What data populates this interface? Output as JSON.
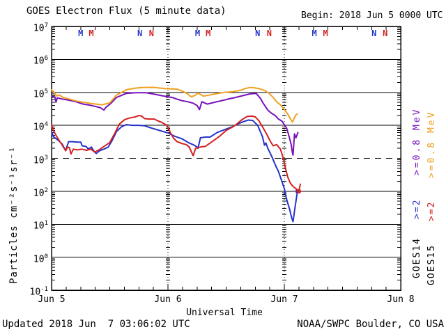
{
  "header": {
    "title": "GOES Electron Flux (5 minute data)",
    "begin": "Begin: 2018 Jun 5 0000 UTC"
  },
  "footer": {
    "updated": "Updated 2018 Jun  7 03:06:02 UTC",
    "source": "NOAA/SWPC Boulder, CO USA"
  },
  "colors": {
    "goes14_e2": "#2433cc",
    "goes14_e08": "#7711bb",
    "goes15_e2": "#d42020",
    "goes15_e08": "#f0a01e",
    "axis": "#000000"
  },
  "legend": {
    "columns": [
      {
        "satellite": "GOES14",
        "e2_label": ">=2",
        "e08_label": ">=0.8 MeV",
        "e2_color": "#2433cc",
        "e08_color": "#7711bb"
      },
      {
        "satellite": "GOES15",
        "e2_label": ">=2",
        "e08_label": ">=0.8 MeV",
        "e2_color": "#d42020",
        "e08_color": "#f0a01e"
      }
    ]
  },
  "chart_data": {
    "type": "line",
    "title": "GOES Electron Flux (5 minute data)",
    "xlabel": "Universal Time",
    "ylabel": "Particles cm-2 s-1 sr-1",
    "ylabel_display": "Particles cm⁻²s⁻¹sr⁻¹",
    "x_unit": "hours since 2018 Jun 5 0000 UTC",
    "xlim": [
      0,
      72
    ],
    "ylim_log10_exp": [
      -1,
      7
    ],
    "grid": "log decades, solid lines with dashed line at 1e3",
    "legend_position": "right, rotated",
    "x_ticks": [
      {
        "hour": 0,
        "label": "Jun 5"
      },
      {
        "hour": 24,
        "label": "Jun 6"
      },
      {
        "hour": 48,
        "label": "Jun 7"
      },
      {
        "hour": 72,
        "label": "Jun 8"
      }
    ],
    "minor_tick_hours": 3,
    "y_ticks_exp": [
      7,
      6,
      5,
      4,
      3,
      2,
      1,
      0,
      -1
    ],
    "hline_solid_exp": [
      6,
      5,
      4,
      2,
      1,
      0
    ],
    "hline_dashed_exp": [
      3
    ],
    "vline_dotted_hours": [
      24,
      48
    ],
    "top_markers": [
      {
        "hour": 6.0,
        "label": "M",
        "satellite": "GOES14",
        "color": "#2433cc"
      },
      {
        "hour": 8.2,
        "label": "M",
        "satellite": "GOES15",
        "color": "#d42020"
      },
      {
        "hour": 18.2,
        "label": "N",
        "satellite": "GOES14",
        "color": "#2433cc"
      },
      {
        "hour": 20.6,
        "label": "N",
        "satellite": "GOES15",
        "color": "#d42020"
      },
      {
        "hour": 30.1,
        "label": "M",
        "satellite": "GOES14",
        "color": "#2433cc"
      },
      {
        "hour": 32.3,
        "label": "M",
        "satellite": "GOES15",
        "color": "#d42020"
      },
      {
        "hour": 42.5,
        "label": "N",
        "satellite": "GOES14",
        "color": "#2433cc"
      },
      {
        "hour": 44.9,
        "label": "N",
        "satellite": "GOES15",
        "color": "#d42020"
      },
      {
        "hour": 54.2,
        "label": "M",
        "satellite": "GOES14",
        "color": "#2433cc"
      },
      {
        "hour": 56.5,
        "label": "M",
        "satellite": "GOES15",
        "color": "#d42020"
      },
      {
        "hour": 66.5,
        "label": "N",
        "satellite": "GOES14",
        "color": "#2433cc"
      },
      {
        "hour": 68.8,
        "label": "N",
        "satellite": "GOES15",
        "color": "#d42020"
      }
    ],
    "series": [
      {
        "name": "GOES14 >=0.8 MeV",
        "color": "#7711bb",
        "points": [
          [
            0,
            78000
          ],
          [
            0.7,
            72000
          ],
          [
            0.9,
            50000
          ],
          [
            1.2,
            68000
          ],
          [
            2.2,
            63000
          ],
          [
            3.6,
            58000
          ],
          [
            5,
            52000
          ],
          [
            6.5,
            44000
          ],
          [
            7.9,
            41000
          ],
          [
            8.9,
            38000
          ],
          [
            10.1,
            34000
          ],
          [
            10.8,
            29000
          ],
          [
            11.2,
            35000
          ],
          [
            12.2,
            46000
          ],
          [
            13.4,
            70000
          ],
          [
            15.4,
            93000
          ],
          [
            17.3,
            98000
          ],
          [
            19.4,
            98000
          ],
          [
            21.2,
            88000
          ],
          [
            23,
            78000
          ],
          [
            24.9,
            70000
          ],
          [
            25.9,
            62000
          ],
          [
            26.9,
            56000
          ],
          [
            28.1,
            52000
          ],
          [
            29.2,
            47000
          ],
          [
            30,
            40000
          ],
          [
            30.5,
            30000
          ],
          [
            31,
            52000
          ],
          [
            32.1,
            44000
          ],
          [
            33.1,
            48000
          ],
          [
            34.1,
            52000
          ],
          [
            35.3,
            57000
          ],
          [
            36.7,
            64000
          ],
          [
            37.9,
            70000
          ],
          [
            38.9,
            76000
          ],
          [
            39.9,
            83000
          ],
          [
            41,
            90000
          ],
          [
            42.2,
            93000
          ],
          [
            43.1,
            65000
          ],
          [
            43.6,
            48000
          ],
          [
            44.6,
            29000
          ],
          [
            45.4,
            23000
          ],
          [
            46.1,
            20000
          ],
          [
            46.8,
            15500
          ],
          [
            47.5,
            13500
          ],
          [
            48.1,
            10000
          ],
          [
            48.5,
            8000
          ],
          [
            49,
            4500
          ],
          [
            49.4,
            2700
          ],
          [
            49.7,
            1400
          ],
          [
            49.8,
            1250
          ],
          [
            50.1,
            5500
          ],
          [
            50.4,
            4200
          ],
          [
            50.8,
            6000
          ]
        ]
      },
      {
        "name": "GOES14 >=2 MeV",
        "color": "#2433cc",
        "end_marker": "square",
        "points": [
          [
            0,
            6500
          ],
          [
            0.4,
            4500
          ],
          [
            1.4,
            3500
          ],
          [
            2.2,
            2700
          ],
          [
            2.9,
            1700
          ],
          [
            3.5,
            3200
          ],
          [
            4.3,
            3200
          ],
          [
            5.3,
            3100
          ],
          [
            6,
            3100
          ],
          [
            6.3,
            2400
          ],
          [
            7.1,
            2300
          ],
          [
            7.6,
            1900
          ],
          [
            8.2,
            2200
          ],
          [
            8.8,
            1600
          ],
          [
            9.2,
            1400
          ],
          [
            9.9,
            1700
          ],
          [
            10.8,
            1900
          ],
          [
            11.7,
            2200
          ],
          [
            12.5,
            3500
          ],
          [
            13.4,
            6500
          ],
          [
            14.4,
            9000
          ],
          [
            15.4,
            10500
          ],
          [
            16.6,
            10000
          ],
          [
            18,
            10000
          ],
          [
            19.2,
            9700
          ],
          [
            20.6,
            8300
          ],
          [
            22,
            7200
          ],
          [
            24,
            5900
          ],
          [
            25.5,
            4600
          ],
          [
            26.9,
            3900
          ],
          [
            28.4,
            2900
          ],
          [
            29.4,
            2500
          ],
          [
            30,
            2200
          ],
          [
            30.2,
            2000
          ],
          [
            30.7,
            4200
          ],
          [
            31.7,
            4400
          ],
          [
            32.7,
            4400
          ],
          [
            34.1,
            6000
          ],
          [
            35.6,
            7300
          ],
          [
            37.2,
            9000
          ],
          [
            38.4,
            11000
          ],
          [
            39.6,
            13000
          ],
          [
            40.6,
            14500
          ],
          [
            41.5,
            14000
          ],
          [
            42.5,
            10000
          ],
          [
            43.5,
            4500
          ],
          [
            43.9,
            2500
          ],
          [
            44.2,
            2900
          ],
          [
            44.6,
            2000
          ],
          [
            45.4,
            1150
          ],
          [
            46.2,
            600
          ],
          [
            46.8,
            400
          ],
          [
            47.4,
            220
          ],
          [
            48,
            120
          ],
          [
            48.5,
            55
          ],
          [
            49.1,
            28
          ],
          [
            49.5,
            16
          ],
          [
            49.8,
            12
          ],
          [
            50.1,
            25
          ],
          [
            50.4,
            50
          ],
          [
            50.7,
            100
          ]
        ]
      },
      {
        "name": "GOES15 >=0.8 MeV",
        "color": "#f0a01e",
        "points": [
          [
            0,
            120000
          ],
          [
            0.4,
            105000
          ],
          [
            1,
            78000
          ],
          [
            1.6,
            83000
          ],
          [
            2.4,
            70000
          ],
          [
            3.6,
            63000
          ],
          [
            5,
            55000
          ],
          [
            6.5,
            50000
          ],
          [
            8.2,
            46000
          ],
          [
            10.4,
            42000
          ],
          [
            12,
            48000
          ],
          [
            13.4,
            83000
          ],
          [
            15.4,
            120000
          ],
          [
            17.3,
            135000
          ],
          [
            18.7,
            140000
          ],
          [
            20.9,
            142000
          ],
          [
            23.5,
            130000
          ],
          [
            24.9,
            128000
          ],
          [
            25.9,
            125000
          ],
          [
            26.9,
            110000
          ],
          [
            27.8,
            95000
          ],
          [
            28.8,
            73000
          ],
          [
            29.5,
            80000
          ],
          [
            30.2,
            95000
          ],
          [
            31.3,
            77000
          ],
          [
            32.4,
            82000
          ],
          [
            34.1,
            92000
          ],
          [
            35.6,
            100000
          ],
          [
            37.4,
            105000
          ],
          [
            38.9,
            115000
          ],
          [
            39.9,
            130000
          ],
          [
            40.8,
            140000
          ],
          [
            41.8,
            138000
          ],
          [
            42.8,
            130000
          ],
          [
            43.9,
            115000
          ],
          [
            44.8,
            95000
          ],
          [
            45.7,
            70000
          ],
          [
            46.5,
            50000
          ],
          [
            47.2,
            42000
          ],
          [
            48,
            30000
          ],
          [
            48.7,
            22000
          ],
          [
            49.2,
            16000
          ],
          [
            49.7,
            12500
          ],
          [
            50.1,
            17000
          ],
          [
            50.4,
            21000
          ],
          [
            50.7,
            22000
          ]
        ]
      },
      {
        "name": "GOES15 >=2 MeV",
        "color": "#d42020",
        "end_marker": "circle",
        "points": [
          [
            0,
            10500
          ],
          [
            0.4,
            7000
          ],
          [
            0.9,
            5000
          ],
          [
            1.4,
            3800
          ],
          [
            2.2,
            2500
          ],
          [
            2.9,
            1700
          ],
          [
            3.3,
            2200
          ],
          [
            3.7,
            2100
          ],
          [
            4,
            1350
          ],
          [
            4.5,
            1900
          ],
          [
            5.3,
            1800
          ],
          [
            6.2,
            1900
          ],
          [
            7.2,
            1750
          ],
          [
            8.1,
            1900
          ],
          [
            8.9,
            1550
          ],
          [
            9.8,
            1800
          ],
          [
            10.8,
            2300
          ],
          [
            12,
            3000
          ],
          [
            13.1,
            6000
          ],
          [
            14,
            11000
          ],
          [
            15.1,
            15000
          ],
          [
            16.3,
            17000
          ],
          [
            17.3,
            18000
          ],
          [
            18,
            20000
          ],
          [
            18.6,
            19000
          ],
          [
            19.2,
            16000
          ],
          [
            20.2,
            15500
          ],
          [
            21.2,
            15500
          ],
          [
            22,
            13500
          ],
          [
            22.6,
            12500
          ],
          [
            23.8,
            10000
          ],
          [
            24.5,
            6000
          ],
          [
            25.2,
            4000
          ],
          [
            25.9,
            3200
          ],
          [
            26.9,
            2800
          ],
          [
            27.8,
            2600
          ],
          [
            28.4,
            2200
          ],
          [
            28.9,
            1500
          ],
          [
            29.2,
            1200
          ],
          [
            29.7,
            2000
          ],
          [
            30.7,
            2200
          ],
          [
            31.7,
            2300
          ],
          [
            33.1,
            3200
          ],
          [
            34.6,
            4600
          ],
          [
            36,
            7000
          ],
          [
            37.2,
            8700
          ],
          [
            38.2,
            11000
          ],
          [
            39.3,
            15000
          ],
          [
            40.3,
            18500
          ],
          [
            41.3,
            19000
          ],
          [
            42,
            18000
          ],
          [
            42.8,
            13500
          ],
          [
            43.5,
            9000
          ],
          [
            44.4,
            5300
          ],
          [
            45.1,
            3300
          ],
          [
            45.7,
            2400
          ],
          [
            46.4,
            2600
          ],
          [
            47.2,
            1900
          ],
          [
            47.8,
            1000
          ],
          [
            48.2,
            520
          ],
          [
            48.7,
            270
          ],
          [
            49.2,
            180
          ],
          [
            49.8,
            140
          ],
          [
            50.4,
            120
          ],
          [
            50.8,
            105
          ],
          [
            51,
            100
          ],
          [
            51.3,
            165
          ]
        ]
      }
    ]
  }
}
